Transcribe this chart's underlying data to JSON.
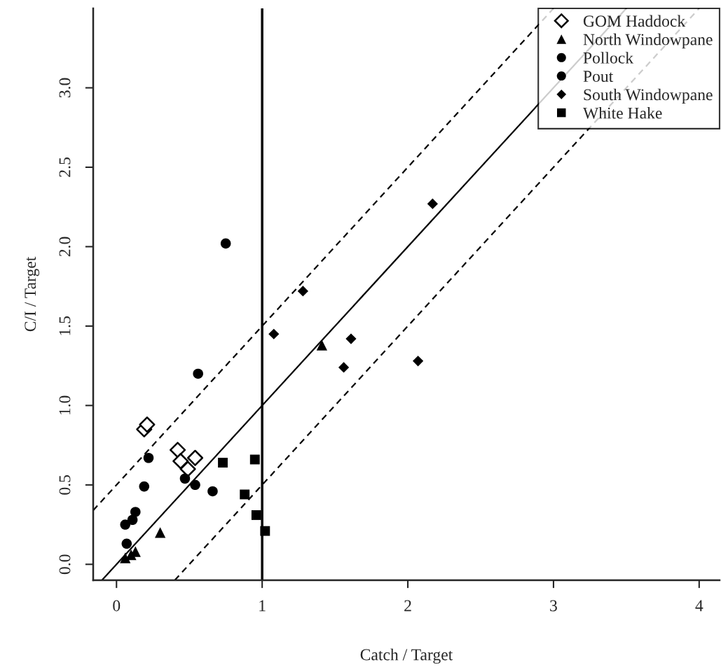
{
  "chart_data": {
    "type": "scatter",
    "xlabel": "Catch / Target",
    "ylabel": "C/I / Target",
    "xlim": [
      -0.16,
      4.14
    ],
    "ylim": [
      -0.1,
      3.5
    ],
    "xticks": [
      0,
      1,
      2,
      3,
      4
    ],
    "yticks": [
      {
        "value": 0,
        "label": "0.0"
      },
      {
        "value": 0.5,
        "label": "0.5"
      },
      {
        "value": 1,
        "label": "1.0"
      },
      {
        "value": 1.5,
        "label": "1.5"
      },
      {
        "value": 2,
        "label": "2.0"
      },
      {
        "value": 2.5,
        "label": "2.5"
      },
      {
        "value": 3,
        "label": "3.0"
      }
    ],
    "grid": false,
    "legend": "top right",
    "ref_lines": [
      {
        "axis": "x",
        "value": 1,
        "color": "#000000",
        "line_style": "solid"
      }
    ],
    "series": [
      {
        "name": "GOM Haddock",
        "color": "#ffffff",
        "marker": "diamond",
        "x": [
          0.19,
          0.21,
          0.42,
          0.44,
          0.49,
          0.54
        ],
        "values": [
          0.85,
          0.88,
          0.72,
          0.65,
          0.6,
          0.67
        ]
      },
      {
        "name": "North Windowpane",
        "color": "#000000",
        "marker": "triangle",
        "x": [
          0.06,
          0.1,
          0.13,
          0.3,
          1.41
        ],
        "values": [
          0.04,
          0.06,
          0.08,
          0.2,
          1.38
        ]
      },
      {
        "name": "Pollock",
        "color": "#000000",
        "marker": "circle",
        "x": [
          0.75,
          0.56,
          0.54,
          0.66
        ],
        "values": [
          2.02,
          1.2,
          0.5,
          0.46
        ]
      },
      {
        "name": "Pout",
        "color": "#000000",
        "marker": "circle",
        "x": [
          0.06,
          0.11,
          0.13,
          0.07,
          0.19,
          0.22,
          0.47
        ],
        "values": [
          0.25,
          0.28,
          0.33,
          0.13,
          0.49,
          0.67,
          0.54
        ]
      },
      {
        "name": "South Windowpane",
        "color": "#000000",
        "marker": "diamond",
        "x": [
          1.28,
          1.08,
          1.61,
          1.56,
          2.07,
          2.17
        ],
        "values": [
          1.72,
          1.45,
          1.42,
          1.24,
          1.28,
          2.27
        ]
      },
      {
        "name": "White Hake",
        "color": "#000000",
        "marker": "square",
        "x": [
          0.73,
          0.95,
          0.88,
          0.96,
          1.02
        ],
        "values": [
          0.64,
          0.66,
          0.44,
          0.31,
          0.21
        ]
      },
      {
        "type": "line",
        "color": "#000000",
        "line_style": "solid",
        "marker": "none",
        "x": [
          -0.1,
          3.5
        ],
        "values": [
          -0.1,
          3.5
        ]
      },
      {
        "type": "line",
        "color": "#000000",
        "line_style": "dashed",
        "marker": "none",
        "x": [
          -0.16,
          3.0
        ],
        "values": [
          0.34,
          3.5
        ]
      },
      {
        "type": "line",
        "color": "#000000",
        "line_style": "dashed",
        "marker": "none",
        "x": [
          0.4,
          4.0
        ],
        "values": [
          -0.1,
          3.5
        ]
      }
    ]
  }
}
